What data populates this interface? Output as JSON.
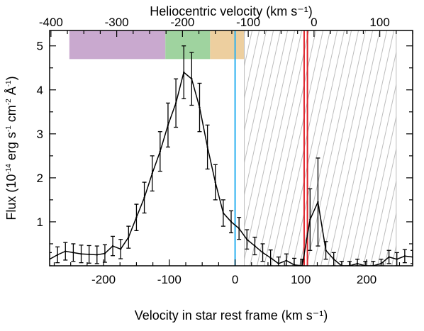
{
  "chart_data": {
    "type": "line",
    "title": "",
    "xlabel": "Velocity in star rest frame (km s⁻¹)",
    "top_xlabel": "Heliocentric velocity (km s⁻¹)",
    "ylabel": {
      "main_a": "Flux (10",
      "exp_a": "-14",
      "main_b": " erg s",
      "exp_b": "-1",
      "main_c": " cm",
      "exp_c": "-2",
      "main_d": " Å",
      "exp_d": "-1",
      "main_e": ")"
    },
    "xlim": [
      -282,
      270
    ],
    "ylim": [
      0,
      5.35
    ],
    "x_ticks": [
      -200,
      -100,
      0,
      100,
      200
    ],
    "x_tick_labels": [
      "-200",
      "-100",
      "0",
      "100",
      "200"
    ],
    "top_offset": 120,
    "top_ticks": [
      -400,
      -300,
      -200,
      -100,
      0,
      100
    ],
    "top_tick_labels": [
      "-400",
      "-300",
      "-200",
      "-100",
      "0",
      "100"
    ],
    "y_ticks": [
      1,
      2,
      3,
      4,
      5
    ],
    "y_tick_labels": [
      "1",
      "2",
      "3",
      "4",
      "5"
    ],
    "grid": false,
    "series": [
      {
        "color": "#000000",
        "x": [
          -282,
          -270,
          -258,
          -246,
          -234,
          -222,
          -210,
          -198,
          -186,
          -174,
          -162,
          -150,
          -138,
          -126,
          -114,
          -102,
          -90,
          -78,
          -66,
          -54,
          -42,
          -30,
          -18,
          -6,
          6,
          18,
          30,
          42,
          54,
          66,
          78,
          90,
          102,
          114,
          126,
          138,
          150,
          162,
          174,
          186,
          198,
          210,
          222,
          234,
          246,
          258,
          270
        ],
        "y": [
          0.15,
          0.25,
          0.33,
          0.3,
          0.27,
          0.26,
          0.25,
          0.28,
          0.45,
          0.38,
          0.65,
          1.1,
          1.55,
          2.1,
          2.6,
          3.2,
          3.7,
          4.4,
          4.25,
          3.6,
          2.7,
          1.9,
          1.2,
          1.0,
          0.85,
          0.6,
          0.45,
          0.3,
          0.18,
          0.05,
          0.12,
          0.02,
          0.0,
          1.05,
          1.45,
          0.35,
          0.15,
          0.0,
          0.0,
          0.05,
          0.0,
          0.0,
          0.05,
          0.2,
          0.15,
          0.22,
          0.2
        ],
        "yerr": [
          0.15,
          0.18,
          0.2,
          0.2,
          0.2,
          0.2,
          0.2,
          0.2,
          0.22,
          0.22,
          0.25,
          0.3,
          0.35,
          0.4,
          0.45,
          0.5,
          0.55,
          0.6,
          0.6,
          0.55,
          0.5,
          0.4,
          0.3,
          0.25,
          0.25,
          0.22,
          0.2,
          0.2,
          0.18,
          0.15,
          0.15,
          0.15,
          0.15,
          0.7,
          1.0,
          0.2,
          0.15,
          0.1,
          0.1,
          0.1,
          0.1,
          0.1,
          0.1,
          0.15,
          0.15,
          0.15,
          0.15
        ]
      }
    ],
    "bands": [
      {
        "x0": -252,
        "x1": -106,
        "y0": 4.7,
        "y1": 5.35,
        "color": "#c9a9cf"
      },
      {
        "x0": -106,
        "x1": -38,
        "y0": 4.7,
        "y1": 5.35,
        "color": "#9fd39f"
      },
      {
        "x0": -38,
        "x1": 14,
        "y0": 4.7,
        "y1": 5.35,
        "color": "#edcf9f"
      }
    ],
    "hatched_region": {
      "x0": 14,
      "x1": 245,
      "color": "#bdbdbd"
    },
    "vertical_lines": [
      {
        "x": 0,
        "color": "#2ab0f0"
      },
      {
        "x": 105,
        "color": "#e0242c"
      },
      {
        "x": 110,
        "color": "#e0242c"
      }
    ]
  }
}
